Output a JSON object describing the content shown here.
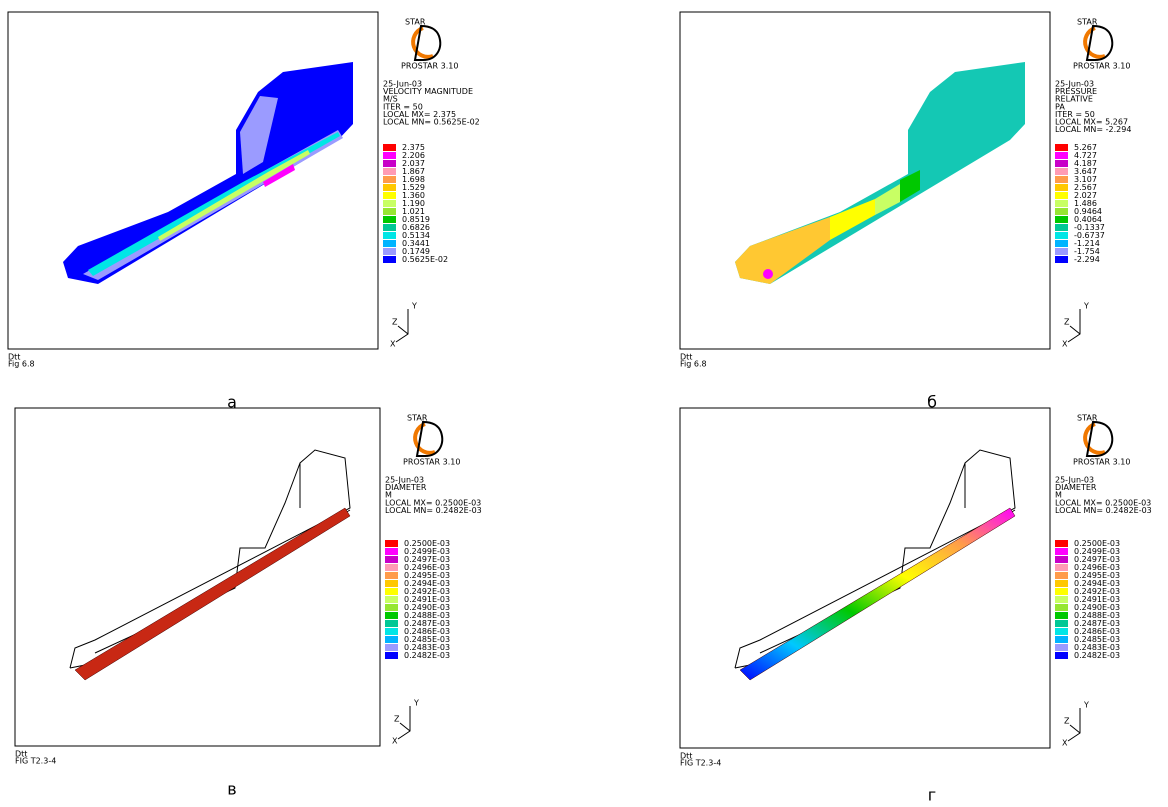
{
  "legend_colors": [
    "#ff0000",
    "#ff00ff",
    "#c800c8",
    "#ff9bb4",
    "#ff9b4b",
    "#ffc800",
    "#ffff00",
    "#c8ff64",
    "#96e632",
    "#00c800",
    "#00c896",
    "#00e6e6",
    "#00b4ff",
    "#9b9bff",
    "#0000ff"
  ],
  "panels": [
    {
      "logo": [
        "STAR",
        "PROSTAR 3.10"
      ],
      "info": [
        "25-Jun-03",
        "VELOCITY MAGNITUDE",
        "M/S",
        "ITER =    50",
        "LOCAL MX= 2.375",
        "LOCAL MN= 0.5625E-02"
      ],
      "legend": [
        "2.375",
        "2.206",
        "2.037",
        "1.867",
        "1.698",
        "1.529",
        "1.360",
        "1.190",
        "1.021",
        "0.8519",
        "0.6826",
        "0.5134",
        "0.3441",
        "0.1749",
        "0.5625E-02"
      ],
      "axes": [
        "Y",
        "Z",
        "X"
      ],
      "footer": [
        "Dtt",
        "Fig 6.8"
      ],
      "caption": "а"
    },
    {
      "logo": [
        "STAR",
        "PROSTAR 3.10"
      ],
      "info": [
        "25-Jun-03",
        "PRESSURE",
        "RELATIVE",
        "PA",
        "ITER =    50",
        "LOCAL MX= 5.267",
        "LOCAL MN= -2.294"
      ],
      "legend": [
        "5.267",
        "4.727",
        "4.187",
        "3.647",
        "3.107",
        "2.567",
        "2.027",
        "1.486",
        "0.9464",
        "0.4064",
        "-0.1337",
        "-0.6737",
        "-1.214",
        "-1.754",
        "-2.294"
      ],
      "axes": [
        "Y",
        "Z",
        "X"
      ],
      "footer": [
        "Dtt",
        "Fig 6.8"
      ],
      "caption": "б"
    },
    {
      "logo": [
        "STAR",
        "PROSTAR 3.10"
      ],
      "info": [
        "25-Jun-03",
        "DIAMETER",
        "M",
        "LOCAL MX= 0.2500E-03",
        "LOCAL MN= 0.2482E-03"
      ],
      "legend": [
        "0.2500E-03",
        "0.2499E-03",
        "0.2497E-03",
        "0.2496E-03",
        "0.2495E-03",
        "0.2494E-03",
        "0.2492E-03",
        "0.2491E-03",
        "0.2490E-03",
        "0.2488E-03",
        "0.2487E-03",
        "0.2486E-03",
        "0.2485E-03",
        "0.2483E-03",
        "0.2482E-03"
      ],
      "axes": [
        "Y",
        "Z",
        "X"
      ],
      "footer": [
        "Dtt",
        "FIG T2.3-4"
      ],
      "caption": "в"
    },
    {
      "logo": [
        "STAR",
        "PROSTAR 3.10"
      ],
      "info": [
        "25-Jun-03",
        "DIAMETER",
        "M",
        "LOCAL MX= 0.2500E-03",
        "LOCAL MN= 0.2482E-03"
      ],
      "legend": [
        "0.2500E-03",
        "0.2499E-03",
        "0.2497E-03",
        "0.2496E-03",
        "0.2495E-03",
        "0.2494E-03",
        "0.2492E-03",
        "0.2491E-03",
        "0.2490E-03",
        "0.2488E-03",
        "0.2487E-03",
        "0.2486E-03",
        "0.2485E-03",
        "0.2483E-03",
        "0.2482E-03"
      ],
      "axes": [
        "Y",
        "Z",
        "X"
      ],
      "footer": [
        "Dtt",
        "FIG T2.3-4"
      ],
      "caption": "г"
    }
  ]
}
